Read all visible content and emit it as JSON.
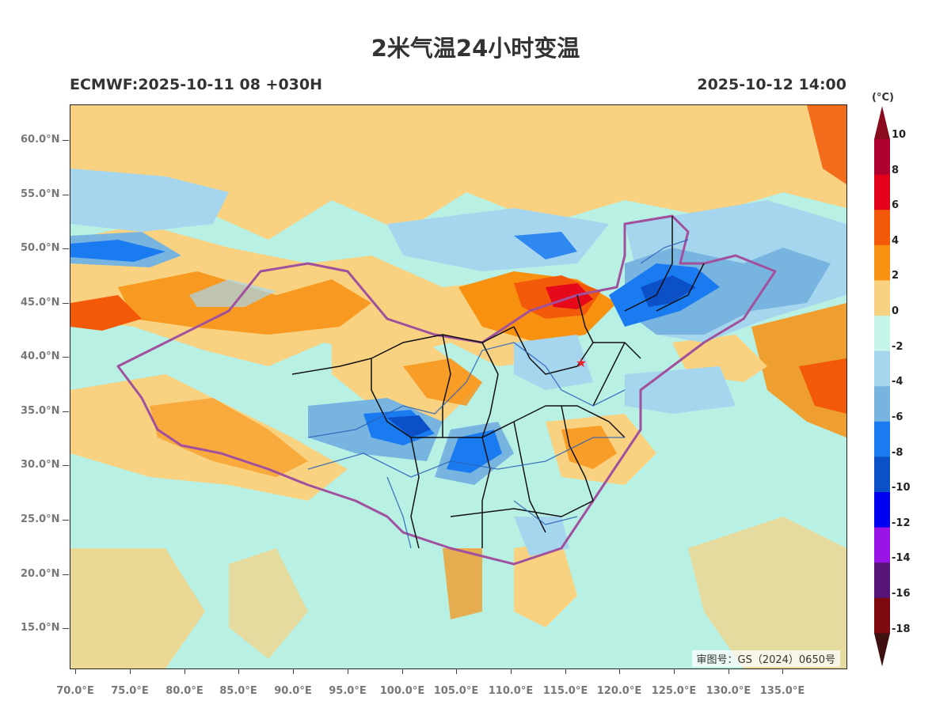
{
  "title": "2米气温24小时变温",
  "subtitle_left": "ECMWF:2025-10-11 08 +030H",
  "subtitle_right": "2025-10-12 14:00",
  "map": {
    "approval_text": "审图号：GS（2024）0650号",
    "marker_icon": "star-icon",
    "marker_color": "#e8262a",
    "province_border_color": "#111111",
    "national_border_color": "#a0509c",
    "river_color": "#2a62b8",
    "lat_labels": [
      "60.0°N",
      "55.0°N",
      "50.0°N",
      "45.0°N",
      "40.0°N",
      "35.0°N",
      "30.0°N",
      "25.0°N",
      "20.0°N",
      "15.0°N"
    ],
    "lon_labels": [
      "70.0°E",
      "75.0°E",
      "80.0°E",
      "85.0°E",
      "90.0°E",
      "95.0°E",
      "100.0°E",
      "105.0°E",
      "110.0°E",
      "115.0°E",
      "120.0°E",
      "125.0°E",
      "130.0°E",
      "135.0°E"
    ]
  },
  "colorbar": {
    "unit": "(°C)",
    "labels": [
      "10",
      "8",
      "6",
      "4",
      "2",
      "0",
      "-2",
      "-4",
      "-6",
      "-8",
      "-10",
      "-12",
      "-14",
      "-16",
      "-18"
    ],
    "colors": [
      "#b00030",
      "#e3001b",
      "#f25a0a",
      "#f89010",
      "#f8d280",
      "#c6f5ea",
      "#a6d6ee",
      "#78b4e0",
      "#1a7af0",
      "#0c50c8",
      "#0000f0",
      "#9a14e6",
      "#561478",
      "#7e0a10"
    ],
    "top_arrow_color": "#8a0a1e",
    "bottom_arrow_color": "#3e1010"
  }
}
